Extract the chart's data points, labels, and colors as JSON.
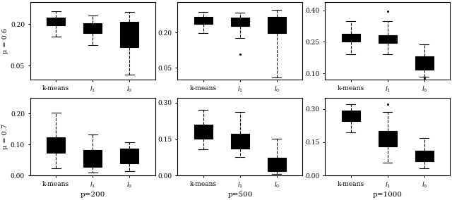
{
  "panels": [
    {
      "row": 0,
      "col": 0,
      "ylim": [
        0.0,
        0.28
      ],
      "yticks": [
        0.05,
        0.2
      ],
      "ytick_labels": [
        "0.05",
        "0.20"
      ],
      "boxes": [
        {
          "whislo": 0.155,
          "q1": 0.195,
          "med": 0.207,
          "q3": 0.223,
          "whishi": 0.248,
          "fliers": [],
          "color": "white"
        },
        {
          "whislo": 0.125,
          "q1": 0.168,
          "med": 0.183,
          "q3": 0.203,
          "whishi": 0.232,
          "fliers": [],
          "color": "white"
        },
        {
          "whislo": 0.018,
          "q1": 0.118,
          "med": 0.163,
          "q3": 0.208,
          "whishi": 0.245,
          "fliers": [],
          "color": "red"
        }
      ]
    },
    {
      "row": 0,
      "col": 1,
      "ylim": [
        0.0,
        0.33
      ],
      "yticks": [
        0.05,
        0.2
      ],
      "ytick_labels": [
        "0.05",
        "0.20"
      ],
      "boxes": [
        {
          "whislo": 0.198,
          "q1": 0.237,
          "med": 0.251,
          "q3": 0.268,
          "whishi": 0.288,
          "fliers": [],
          "color": "white"
        },
        {
          "whislo": 0.178,
          "q1": 0.228,
          "med": 0.247,
          "q3": 0.265,
          "whishi": 0.284,
          "fliers": [
            0.108
          ],
          "color": "white"
        },
        {
          "whislo": 0.01,
          "q1": 0.197,
          "med": 0.233,
          "q3": 0.268,
          "whishi": 0.298,
          "fliers": [],
          "color": "red"
        }
      ]
    },
    {
      "row": 0,
      "col": 2,
      "ylim": [
        0.07,
        0.44
      ],
      "yticks": [
        0.1,
        0.25,
        0.4
      ],
      "ytick_labels": [
        "0.10",
        "0.25",
        "0.40"
      ],
      "boxes": [
        {
          "whislo": 0.19,
          "q1": 0.252,
          "med": 0.27,
          "q3": 0.29,
          "whishi": 0.348,
          "fliers": [],
          "color": "white"
        },
        {
          "whislo": 0.19,
          "q1": 0.245,
          "med": 0.262,
          "q3": 0.283,
          "whishi": 0.35,
          "fliers": [
            0.395
          ],
          "color": "white"
        },
        {
          "whislo": 0.082,
          "q1": 0.118,
          "med": 0.148,
          "q3": 0.182,
          "whishi": 0.238,
          "fliers": [
            0.078
          ],
          "color": "red"
        }
      ]
    },
    {
      "row": 1,
      "col": 0,
      "ylim": [
        0.0,
        0.25
      ],
      "yticks": [
        0.0,
        0.1,
        0.2
      ],
      "ytick_labels": [
        "0.00",
        "0.10",
        "0.20"
      ],
      "boxes": [
        {
          "whislo": 0.022,
          "q1": 0.072,
          "med": 0.093,
          "q3": 0.123,
          "whishi": 0.202,
          "fliers": [],
          "color": "white"
        },
        {
          "whislo": 0.01,
          "q1": 0.028,
          "med": 0.048,
          "q3": 0.082,
          "whishi": 0.133,
          "fliers": [],
          "color": "white"
        },
        {
          "whislo": 0.013,
          "q1": 0.038,
          "med": 0.055,
          "q3": 0.087,
          "whishi": 0.108,
          "fliers": [],
          "color": "red"
        }
      ]
    },
    {
      "row": 1,
      "col": 1,
      "ylim": [
        0.0,
        0.32
      ],
      "yticks": [
        0.0,
        0.15,
        0.3
      ],
      "ytick_labels": [
        "0.00",
        "0.15",
        "0.30"
      ],
      "boxes": [
        {
          "whislo": 0.108,
          "q1": 0.152,
          "med": 0.182,
          "q3": 0.21,
          "whishi": 0.27,
          "fliers": [],
          "color": "white"
        },
        {
          "whislo": 0.075,
          "q1": 0.112,
          "med": 0.138,
          "q3": 0.172,
          "whishi": 0.262,
          "fliers": [],
          "color": "white"
        },
        {
          "whislo": 0.005,
          "q1": 0.018,
          "med": 0.038,
          "q3": 0.072,
          "whishi": 0.152,
          "fliers": [],
          "color": "red"
        }
      ]
    },
    {
      "row": 1,
      "col": 2,
      "ylim": [
        0.0,
        0.35
      ],
      "yticks": [
        0.0,
        0.15,
        0.3
      ],
      "ytick_labels": [
        "0.00",
        "0.15",
        "0.30"
      ],
      "boxes": [
        {
          "whislo": 0.193,
          "q1": 0.245,
          "med": 0.272,
          "q3": 0.293,
          "whishi": 0.32,
          "fliers": [],
          "color": "white"
        },
        {
          "whislo": 0.058,
          "q1": 0.132,
          "med": 0.162,
          "q3": 0.2,
          "whishi": 0.288,
          "fliers": [
            0.322
          ],
          "color": "white"
        },
        {
          "whislo": 0.033,
          "q1": 0.063,
          "med": 0.088,
          "q3": 0.113,
          "whishi": 0.168,
          "fliers": [],
          "color": "red"
        }
      ]
    }
  ],
  "col_labels": [
    "p=200",
    "p=500",
    "p=1000"
  ],
  "row_labels": [
    "μ = 0.6",
    "μ = 0.7"
  ],
  "x_tick_labels": [
    "k-means",
    "$l_1$",
    "$l_0$"
  ],
  "bg_color": "#ffffff",
  "red_color": "#dd0000"
}
